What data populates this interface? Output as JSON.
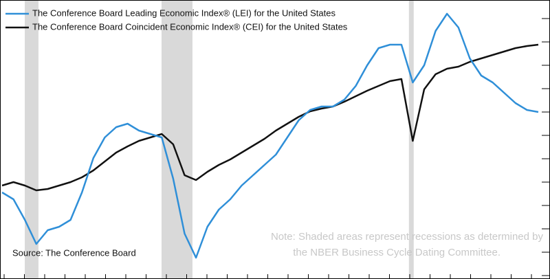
{
  "chart_data": {
    "type": "line",
    "categories": [
      null,
      null,
      null,
      null,
      null,
      null,
      null,
      null,
      null,
      null,
      null,
      null,
      null,
      null,
      null,
      null,
      null,
      null,
      null,
      null,
      null,
      null,
      null,
      null,
      null,
      null,
      null,
      null,
      null,
      null,
      null,
      null,
      null,
      null,
      null,
      null,
      null,
      null,
      null,
      null,
      null,
      null,
      null,
      null,
      null,
      null,
      null,
      null
    ],
    "ylim": [
      0,
      100
    ],
    "series": [
      {
        "name": "The Conference Board Leading Economic Index® (LEI) for the United States",
        "color": "#2f8fd8",
        "values": [
          30,
          27.5,
          20,
          11.25,
          16.25,
          17.5,
          20,
          30,
          42.5,
          50,
          53.75,
          55,
          52.5,
          51.25,
          50,
          35,
          15,
          6.25,
          17.5,
          23.75,
          27.5,
          32.5,
          36.25,
          40,
          43.75,
          50,
          56.25,
          60,
          61.25,
          61.25,
          63.75,
          68.75,
          76.25,
          82.5,
          83.75,
          83.75,
          70,
          76.25,
          88.75,
          95,
          90,
          78.75,
          72.5,
          70,
          66.25,
          62.5,
          60,
          59.25
        ]
      },
      {
        "name": "The Conference Board Coincident Economic Index® (CEI) for the United States",
        "color": "#111111",
        "values": [
          32.5,
          33.75,
          32.5,
          30.75,
          31.25,
          32.5,
          33.75,
          35.5,
          38,
          41.25,
          44.5,
          46.75,
          48.75,
          50,
          51.25,
          47.5,
          36.25,
          34.5,
          37.5,
          40,
          42,
          44.5,
          47,
          49.5,
          52.5,
          55,
          57.5,
          59.5,
          60.5,
          61.25,
          63,
          65,
          67,
          68.75,
          70.5,
          71.25,
          48.75,
          67.5,
          73,
          75,
          75.75,
          77.5,
          78.75,
          80,
          81.25,
          82.5,
          83.25,
          83.75
        ]
      }
    ],
    "recessions": [
      [
        1.99,
        3.19
      ],
      [
        13.98,
        16.69
      ],
      [
        35.66,
        36.08
      ]
    ],
    "recession_color": "#d9d9d9",
    "source": "Source: The Conference Board",
    "note": [
      "Note: Shaded areas represent recessions as determined by",
      "the NBER Business Cycle Dating Committee."
    ]
  }
}
